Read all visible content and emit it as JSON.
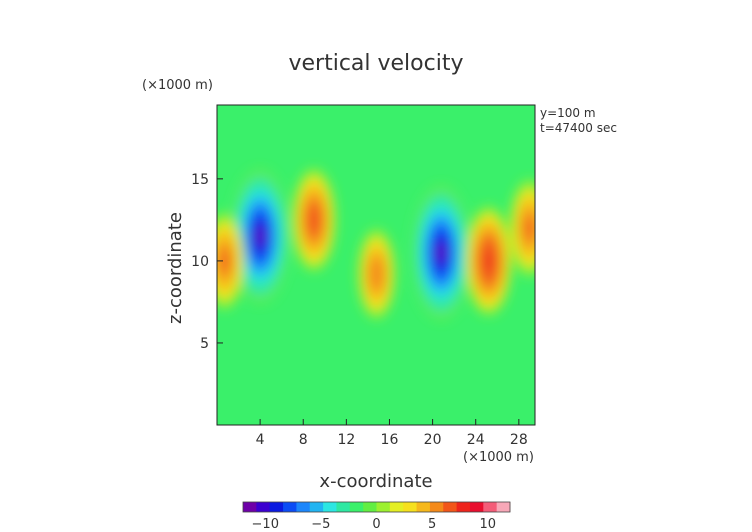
{
  "chart_data": {
    "type": "heatmap",
    "title": "vertical velocity",
    "xlabel": "x-coordinate",
    "ylabel": "z-coordinate",
    "x_unit": "(×1000 m)",
    "z_unit": "(×1000 m)",
    "annotations": [
      "y=100 m",
      "t=47400 sec"
    ],
    "xlim": [
      0,
      29.5
    ],
    "zlim": [
      0,
      19.5
    ],
    "x_ticks": [
      4,
      8,
      12,
      16,
      20,
      24,
      28
    ],
    "z_ticks": [
      5,
      10,
      15
    ],
    "colorbar": {
      "range": [
        -12,
        12
      ],
      "ticks": [
        -10,
        -5,
        0,
        5,
        10
      ],
      "tick_labels": [
        "−10",
        "−5",
        "0",
        "5",
        "10"
      ],
      "colors": [
        "#6e00a8",
        "#3c00d0",
        "#0a1ae0",
        "#0b4cf5",
        "#1c86fb",
        "#22b4f2",
        "#2ce6e2",
        "#2ee8a2",
        "#3af06a",
        "#62ee42",
        "#9cf030",
        "#e4ef24",
        "#f6e01e",
        "#f6b81c",
        "#f48a1a",
        "#f2561a",
        "#ee241c",
        "#e80e2e",
        "#f45c78",
        "#f8a8b8"
      ]
    },
    "features": [
      {
        "x": 4,
        "z": 11.5,
        "value": -12
      },
      {
        "x": 9,
        "z": 12.5,
        "value": 7
      },
      {
        "x": 14.8,
        "z": 9.2,
        "value": 5
      },
      {
        "x": 20.8,
        "z": 10.5,
        "value": -12
      },
      {
        "x": 25.2,
        "z": 10.0,
        "value": 8
      },
      {
        "x": 29,
        "z": 12,
        "value": 6
      },
      {
        "x": 0.7,
        "z": 10,
        "value": 6
      }
    ],
    "grid": false
  }
}
